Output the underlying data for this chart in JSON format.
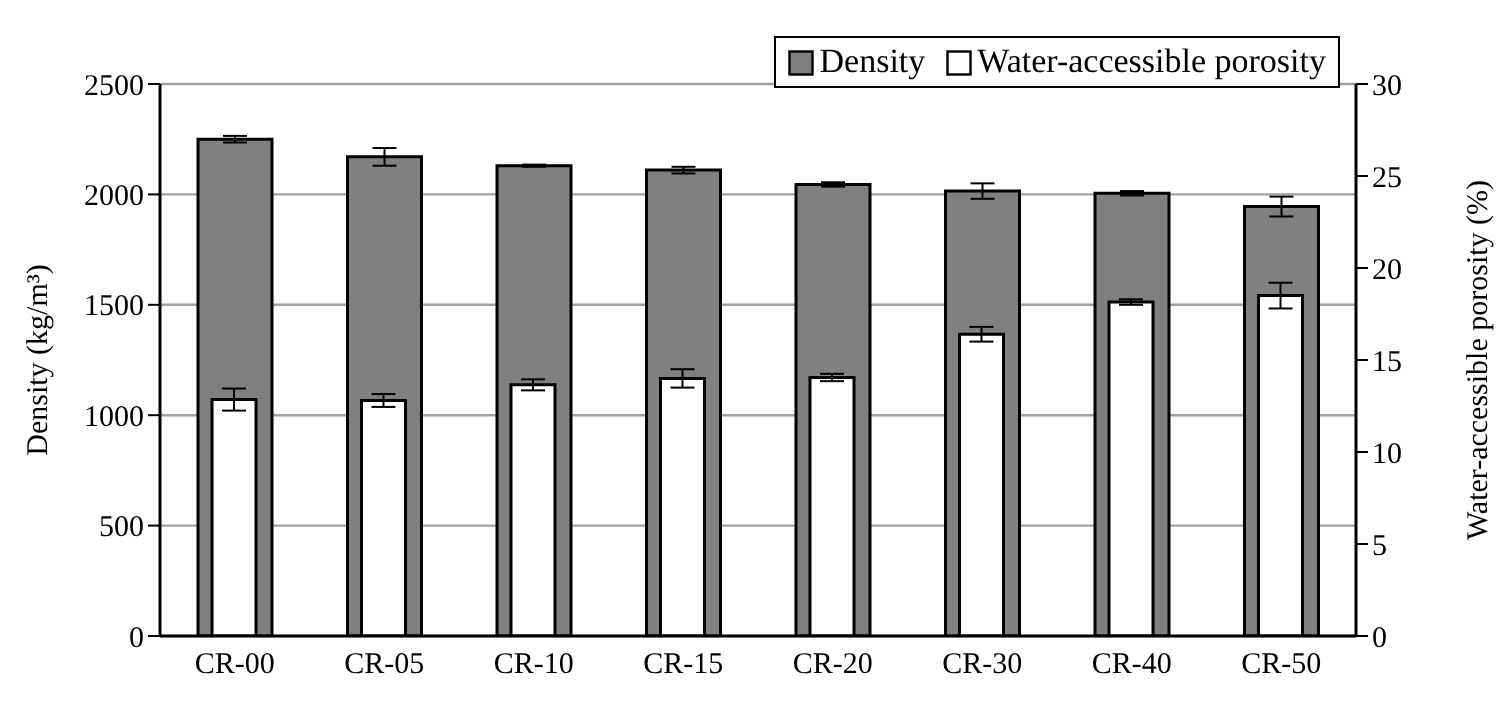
{
  "chart_data": {
    "type": "bar",
    "ylabel": "Density (kg/m³)",
    "y2label": "Water-accessible porosity (%)",
    "categories": [
      "CR-00",
      "CR-05",
      "CR-10",
      "CR-15",
      "CR-20",
      "CR-30",
      "CR-40",
      "CR-50"
    ],
    "series": [
      {
        "name": "Density",
        "color": "#808080",
        "values": [
          2250,
          2170,
          2130,
          2110,
          2045,
          2015,
          2005,
          1945
        ],
        "errors": [
          15,
          40,
          5,
          15,
          10,
          35,
          10,
          45
        ]
      },
      {
        "name": "Water-accessible porosity",
        "color": "#ffffff",
        "axis": "y2",
        "values": [
          12.85,
          12.8,
          13.65,
          14.0,
          14.05,
          16.4,
          18.15,
          18.5
        ],
        "errors": [
          0.6,
          0.35,
          0.3,
          0.5,
          0.2,
          0.4,
          0.15,
          0.7
        ]
      }
    ],
    "ylim": [
      0,
      2500
    ],
    "yticks": [
      0,
      500,
      1000,
      1500,
      2000,
      2500
    ],
    "y2lim": [
      0,
      30
    ],
    "y2ticks": [
      0,
      5,
      10,
      15,
      20,
      25,
      30
    ],
    "grid": "y",
    "legend": "top right"
  }
}
